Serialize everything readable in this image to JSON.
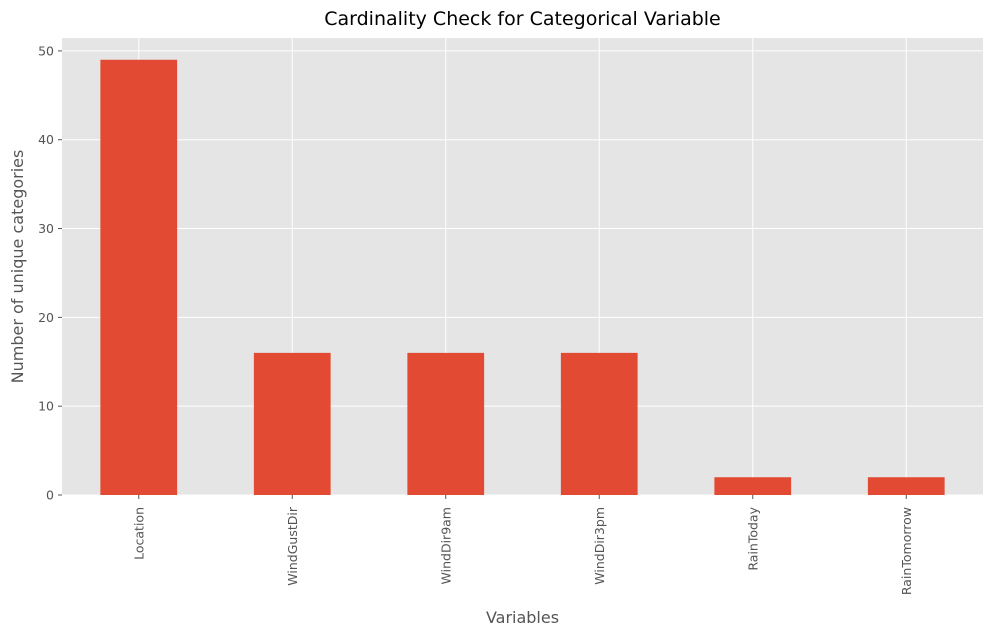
{
  "chart_data": {
    "type": "bar",
    "title": "Cardinality Check for Categorical Variable",
    "xlabel": "Variables",
    "ylabel": "Number of unique categories",
    "categories": [
      "Location",
      "WindGustDir",
      "WindDir9am",
      "WindDir3pm",
      "RainToday",
      "RainTomorrow"
    ],
    "values": [
      49,
      16,
      16,
      16,
      2,
      2
    ],
    "ylim": [
      0,
      51.45
    ],
    "yticks": [
      0,
      10,
      20,
      30,
      40,
      50
    ],
    "grid": true,
    "legend": "none",
    "colors": {
      "bar": "#e24a33",
      "plot_background": "#e5e5e5",
      "grid": "#ffffff",
      "tick": "#555555",
      "text": "#555555"
    }
  }
}
